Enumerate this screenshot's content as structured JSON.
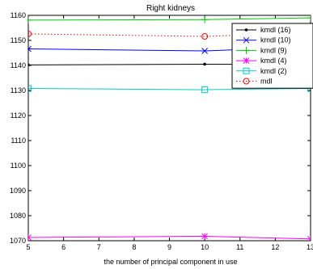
{
  "chart_data": {
    "type": "line",
    "title": "Right kidneys",
    "xlabel": "the number of principal component in use",
    "ylabel": "",
    "xlim": [
      5,
      13
    ],
    "ylim": [
      1070,
      1160
    ],
    "x_ticks": [
      "5",
      "6",
      "7",
      "8",
      "9",
      "10",
      "11",
      "12",
      "13"
    ],
    "y_ticks": [
      "1070",
      "1080",
      "1090",
      "1100",
      "1110",
      "1120",
      "1130",
      "1140",
      "1150",
      "1160"
    ],
    "y_tick_values": [
      1070,
      1080,
      1090,
      1100,
      1110,
      1120,
      1130,
      1140,
      1150,
      1160
    ],
    "x_tick_values": [
      5,
      6,
      7,
      8,
      9,
      10,
      11,
      12,
      13
    ],
    "grid": false,
    "legend_position": "top-right",
    "x": [
      5,
      10,
      13
    ],
    "series": [
      {
        "name": "kmdl (16)",
        "color": "#000000",
        "marker": "dot",
        "dash": "solid",
        "values": [
          1140.2,
          1140.5,
          1140.3
        ]
      },
      {
        "name": "kmdl (10)",
        "color": "#0000ff",
        "marker": "x",
        "dash": "solid",
        "values": [
          1146.6,
          1145.8,
          1147.4
        ]
      },
      {
        "name": "kmdl (9)",
        "color": "#00cc00",
        "marker": "plus",
        "dash": "solid",
        "values": [
          1158.1,
          1158.3,
          1159.0
        ]
      },
      {
        "name": "kmdl (4)",
        "color": "#ff00ff",
        "marker": "star",
        "dash": "solid",
        "values": [
          1071.3,
          1071.8,
          1070.7
        ]
      },
      {
        "name": "kmdl (2)",
        "color": "#00cccc",
        "marker": "square",
        "dash": "solid",
        "values": [
          1130.8,
          1130.3,
          1130.8
        ]
      },
      {
        "name": "mdl",
        "color": "#ff0000",
        "marker": "circle",
        "dash": "dotted",
        "values": [
          1152.6,
          1151.6,
          1153.0
        ]
      }
    ]
  }
}
